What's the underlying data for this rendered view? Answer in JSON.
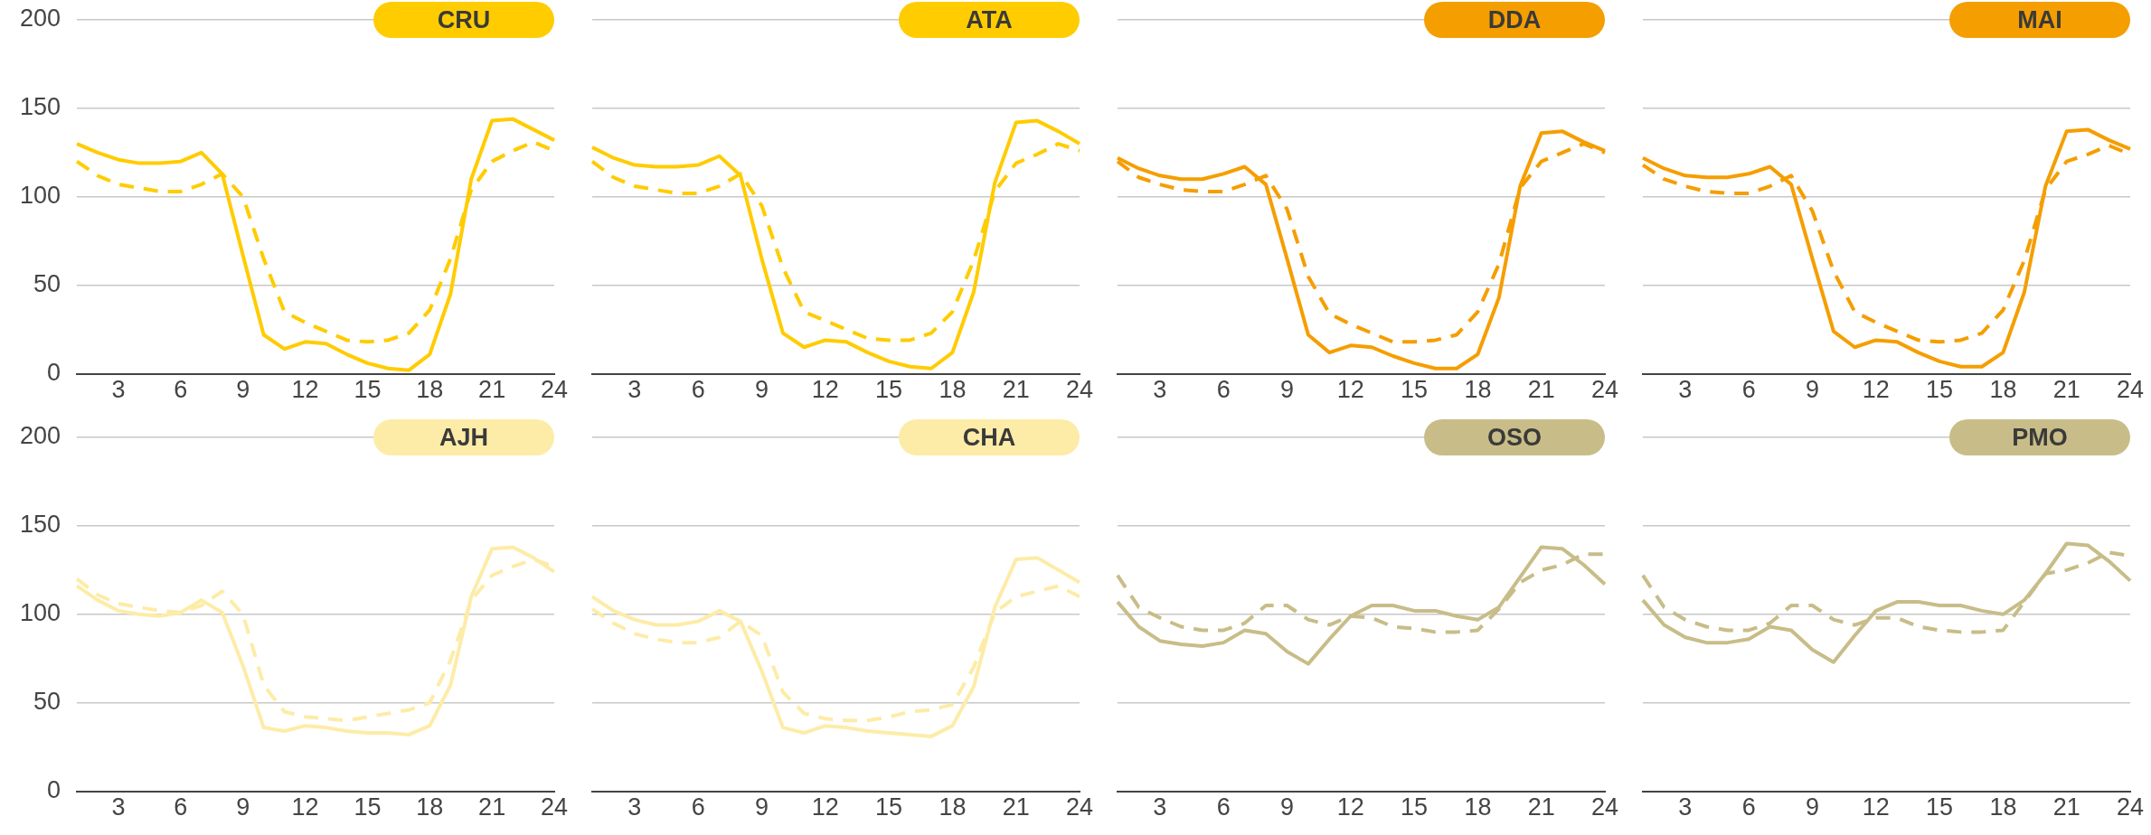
{
  "chart_data": [
    {
      "type": "line",
      "title": "CRU",
      "x": [
        1,
        2,
        3,
        4,
        5,
        6,
        7,
        8,
        9,
        10,
        11,
        12,
        13,
        14,
        15,
        16,
        17,
        18,
        19,
        20,
        21,
        22,
        23,
        24
      ],
      "xlim": [
        1,
        24
      ],
      "xticks": [
        3,
        6,
        9,
        12,
        15,
        18,
        21,
        24
      ],
      "ylim": [
        0,
        200
      ],
      "yticks": [
        0,
        50,
        100,
        150,
        200
      ],
      "grid": "y",
      "legend": false,
      "series": [
        {
          "color": "#ffcc00",
          "line_style": "solid",
          "values": [
            130,
            125,
            121,
            119,
            119,
            120,
            125,
            113,
            67,
            22,
            14,
            18,
            17,
            11,
            6,
            3,
            2,
            11,
            45,
            110,
            143,
            144,
            138,
            132
          ]
        },
        {
          "color": "#ffcc00",
          "line_style": "dashed",
          "values": [
            120,
            112,
            107,
            105,
            103,
            103,
            107,
            113,
            100,
            65,
            35,
            29,
            24,
            19,
            18,
            19,
            23,
            36,
            65,
            104,
            120,
            126,
            131,
            126
          ]
        }
      ]
    },
    {
      "type": "line",
      "title": "ATA",
      "x": [
        1,
        2,
        3,
        4,
        5,
        6,
        7,
        8,
        9,
        10,
        11,
        12,
        13,
        14,
        15,
        16,
        17,
        18,
        19,
        20,
        21,
        22,
        23,
        24
      ],
      "xlim": [
        1,
        24
      ],
      "xticks": [
        3,
        6,
        9,
        12,
        15,
        18,
        21,
        24
      ],
      "ylim": [
        0,
        200
      ],
      "yticks": [
        0,
        50,
        100,
        150,
        200
      ],
      "grid": "y",
      "legend": false,
      "tick_labels": "x",
      "series": [
        {
          "color": "#ffcc00",
          "line_style": "solid",
          "values": [
            128,
            122,
            118,
            117,
            117,
            118,
            123,
            112,
            65,
            23,
            15,
            19,
            18,
            12,
            7,
            4,
            3,
            12,
            46,
            108,
            142,
            143,
            137,
            130
          ]
        },
        {
          "color": "#ffcc00",
          "line_style": "dashed",
          "values": [
            120,
            111,
            106,
            104,
            102,
            102,
            106,
            113,
            95,
            60,
            35,
            30,
            25,
            20,
            19,
            19,
            23,
            35,
            64,
            103,
            119,
            124,
            130,
            126
          ]
        }
      ]
    },
    {
      "type": "line",
      "title": "DDA",
      "x": [
        1,
        2,
        3,
        4,
        5,
        6,
        7,
        8,
        9,
        10,
        11,
        12,
        13,
        14,
        15,
        16,
        17,
        18,
        19,
        20,
        21,
        22,
        23,
        24
      ],
      "xlim": [
        1,
        24
      ],
      "xticks": [
        3,
        6,
        9,
        12,
        15,
        18,
        21,
        24
      ],
      "ylim": [
        0,
        200
      ],
      "yticks": [
        0,
        50,
        100,
        150,
        200
      ],
      "grid": "y",
      "legend": false,
      "tick_labels": "x",
      "series": [
        {
          "color": "#f59e00",
          "line_style": "solid",
          "values": [
            122,
            116,
            112,
            110,
            110,
            113,
            117,
            107,
            65,
            22,
            12,
            16,
            15,
            10,
            6,
            3,
            3,
            11,
            43,
            106,
            136,
            137,
            131,
            126
          ]
        },
        {
          "color": "#f59e00",
          "line_style": "dashed",
          "values": [
            120,
            111,
            107,
            104,
            103,
            103,
            107,
            112,
            93,
            55,
            34,
            28,
            23,
            18,
            18,
            19,
            22,
            35,
            62,
            105,
            120,
            125,
            130,
            125
          ]
        }
      ]
    },
    {
      "type": "line",
      "title": "MAI",
      "x": [
        1,
        2,
        3,
        4,
        5,
        6,
        7,
        8,
        9,
        10,
        11,
        12,
        13,
        14,
        15,
        16,
        17,
        18,
        19,
        20,
        21,
        22,
        23,
        24
      ],
      "xlim": [
        1,
        24
      ],
      "xticks": [
        3,
        6,
        9,
        12,
        15,
        18,
        21,
        24
      ],
      "ylim": [
        0,
        200
      ],
      "yticks": [
        0,
        50,
        100,
        150,
        200
      ],
      "grid": "y",
      "legend": false,
      "tick_labels": "x",
      "series": [
        {
          "color": "#f59e00",
          "line_style": "solid",
          "values": [
            122,
            116,
            112,
            111,
            111,
            113,
            117,
            107,
            65,
            24,
            15,
            19,
            18,
            12,
            7,
            4,
            4,
            12,
            46,
            106,
            137,
            138,
            132,
            127
          ]
        },
        {
          "color": "#f59e00",
          "line_style": "dashed",
          "values": [
            118,
            110,
            106,
            103,
            102,
            102,
            106,
            112,
            92,
            58,
            35,
            29,
            24,
            19,
            18,
            19,
            23,
            36,
            64,
            104,
            120,
            124,
            129,
            124
          ]
        }
      ]
    },
    {
      "type": "line",
      "title": "AJH",
      "x": [
        1,
        2,
        3,
        4,
        5,
        6,
        7,
        8,
        9,
        10,
        11,
        12,
        13,
        14,
        15,
        16,
        17,
        18,
        19,
        20,
        21,
        22,
        23,
        24
      ],
      "xlim": [
        1,
        24
      ],
      "xticks": [
        3,
        6,
        9,
        12,
        15,
        18,
        21,
        24
      ],
      "ylim": [
        0,
        200
      ],
      "yticks": [
        0,
        50,
        100,
        150,
        200
      ],
      "grid": "y",
      "legend": false,
      "series": [
        {
          "color": "#fdeca8",
          "line_style": "solid",
          "values": [
            116,
            108,
            102,
            100,
            99,
            101,
            108,
            101,
            71,
            36,
            34,
            37,
            36,
            34,
            33,
            33,
            32,
            37,
            60,
            110,
            137,
            138,
            132,
            124
          ]
        },
        {
          "color": "#fdeca8",
          "line_style": "dashed",
          "values": [
            120,
            111,
            106,
            104,
            102,
            101,
            105,
            113,
            100,
            60,
            45,
            42,
            41,
            40,
            42,
            44,
            46,
            50,
            74,
            108,
            122,
            127,
            131,
            127
          ]
        }
      ]
    },
    {
      "type": "line",
      "title": "CHA",
      "x": [
        1,
        2,
        3,
        4,
        5,
        6,
        7,
        8,
        9,
        10,
        11,
        12,
        13,
        14,
        15,
        16,
        17,
        18,
        19,
        20,
        21,
        22,
        23,
        24
      ],
      "xlim": [
        1,
        24
      ],
      "xticks": [
        3,
        6,
        9,
        12,
        15,
        18,
        21,
        24
      ],
      "ylim": [
        0,
        200
      ],
      "yticks": [
        0,
        50,
        100,
        150,
        200
      ],
      "grid": "y",
      "legend": false,
      "tick_labels": "x",
      "series": [
        {
          "color": "#fdeca8",
          "line_style": "solid",
          "values": [
            110,
            102,
            97,
            94,
            94,
            96,
            102,
            96,
            68,
            36,
            33,
            37,
            36,
            34,
            33,
            32,
            31,
            37,
            59,
            104,
            131,
            132,
            125,
            118
          ]
        },
        {
          "color": "#fdeca8",
          "line_style": "dashed",
          "values": [
            103,
            95,
            89,
            86,
            84,
            84,
            87,
            96,
            88,
            56,
            44,
            41,
            40,
            40,
            42,
            45,
            46,
            49,
            70,
            101,
            110,
            113,
            116,
            110
          ]
        }
      ]
    },
    {
      "type": "line",
      "title": "OSO",
      "x": [
        1,
        2,
        3,
        4,
        5,
        6,
        7,
        8,
        9,
        10,
        11,
        12,
        13,
        14,
        15,
        16,
        17,
        18,
        19,
        20,
        21,
        22,
        23,
        24
      ],
      "xlim": [
        1,
        24
      ],
      "xticks": [
        3,
        6,
        9,
        12,
        15,
        18,
        21,
        24
      ],
      "ylim": [
        0,
        200
      ],
      "yticks": [
        0,
        50,
        100,
        150,
        200
      ],
      "grid": "y",
      "legend": false,
      "tick_labels": "x",
      "series": [
        {
          "color": "#c8bd88",
          "line_style": "solid",
          "values": [
            107,
            93,
            85,
            83,
            82,
            84,
            91,
            89,
            79,
            72,
            86,
            99,
            105,
            105,
            102,
            102,
            99,
            97,
            104,
            121,
            138,
            137,
            128,
            117
          ]
        },
        {
          "color": "#c8bd88",
          "line_style": "dashed",
          "values": [
            122,
            104,
            98,
            93,
            91,
            91,
            95,
            105,
            105,
            97,
            94,
            99,
            98,
            93,
            92,
            90,
            90,
            91,
            103,
            118,
            125,
            128,
            134,
            134
          ]
        }
      ]
    },
    {
      "type": "line",
      "title": "PMO",
      "x": [
        1,
        2,
        3,
        4,
        5,
        6,
        7,
        8,
        9,
        10,
        11,
        12,
        13,
        14,
        15,
        16,
        17,
        18,
        19,
        20,
        21,
        22,
        23,
        24
      ],
      "xlim": [
        1,
        24
      ],
      "xticks": [
        3,
        6,
        9,
        12,
        15,
        18,
        21,
        24
      ],
      "ylim": [
        0,
        200
      ],
      "yticks": [
        0,
        50,
        100,
        150,
        200
      ],
      "grid": "y",
      "legend": false,
      "tick_labels": "x",
      "series": [
        {
          "color": "#c8bd88",
          "line_style": "solid",
          "values": [
            108,
            94,
            87,
            84,
            84,
            86,
            93,
            91,
            80,
            73,
            88,
            102,
            107,
            107,
            105,
            105,
            102,
            100,
            108,
            123,
            140,
            139,
            130,
            119
          ]
        },
        {
          "color": "#c8bd88",
          "line_style": "dashed",
          "values": [
            122,
            104,
            97,
            93,
            91,
            91,
            95,
            105,
            105,
            97,
            94,
            98,
            98,
            93,
            91,
            90,
            90,
            91,
            107,
            123,
            125,
            129,
            135,
            133
          ]
        }
      ]
    }
  ]
}
